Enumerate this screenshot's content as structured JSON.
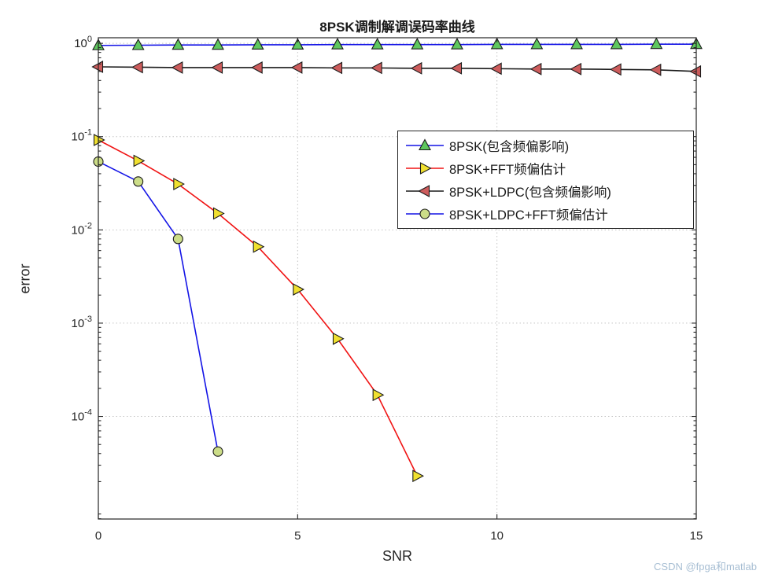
{
  "title": "8PSK调制解调误码率曲线",
  "xlabel": "SNR",
  "ylabel": "error",
  "watermark": "CSDN @fpga和matlab",
  "chart_data": {
    "type": "line",
    "title": "8PSK调制解调误码率曲线",
    "xlabel": "SNR",
    "ylabel": "error",
    "y_scale": "log",
    "xlim": [
      0,
      15
    ],
    "log_ylim": [
      -5.1,
      0.06
    ],
    "xticks": [
      0,
      5,
      10,
      15
    ],
    "ytick_exponents": [
      0,
      -1,
      -2,
      -3,
      -4
    ],
    "grid": true,
    "legend_position": "upper-right-inside",
    "series": [
      {
        "label": "8PSK(包含频偏影响)",
        "line_color": "#1414e6",
        "marker": "triangle-up",
        "marker_fill": "#5ec75e",
        "marker_edge": "#1a1a1a",
        "x": [
          0,
          1,
          2,
          3,
          4,
          5,
          6,
          7,
          8,
          9,
          10,
          11,
          12,
          13,
          14,
          15
        ],
        "y": [
          0.95,
          0.955,
          0.96,
          0.96,
          0.965,
          0.965,
          0.97,
          0.97,
          0.97,
          0.97,
          0.975,
          0.975,
          0.975,
          0.975,
          0.98,
          0.98
        ]
      },
      {
        "label": "8PSK+FFT频偏估计",
        "line_color": "#f01414",
        "marker": "triangle-right",
        "marker_fill": "#f0e030",
        "marker_edge": "#1a1a1a",
        "x": [
          0,
          1,
          2,
          3,
          4,
          5,
          6,
          7,
          8
        ],
        "y": [
          0.092,
          0.055,
          0.031,
          0.015,
          0.0066,
          0.0023,
          0.00068,
          0.00017,
          2.3e-05
        ]
      },
      {
        "label": "8PSK+LDPC(包含频偏影响)",
        "line_color": "#1a1a1a",
        "marker": "triangle-left",
        "marker_fill": "#cd5c5c",
        "marker_edge": "#1a1a1a",
        "x": [
          0,
          1,
          2,
          3,
          4,
          5,
          6,
          7,
          8,
          9,
          10,
          11,
          12,
          13,
          14,
          15
        ],
        "y": [
          0.56,
          0.555,
          0.55,
          0.55,
          0.55,
          0.55,
          0.545,
          0.545,
          0.54,
          0.54,
          0.535,
          0.53,
          0.53,
          0.525,
          0.52,
          0.5
        ]
      },
      {
        "label": "8PSK+LDPC+FFT频偏估计",
        "line_color": "#1414e6",
        "marker": "circle",
        "marker_fill": "#ccdd88",
        "marker_edge": "#1a1a1a",
        "x": [
          0,
          1,
          2,
          3
        ],
        "y": [
          0.054,
          0.033,
          0.008,
          4.2e-05
        ]
      }
    ]
  }
}
